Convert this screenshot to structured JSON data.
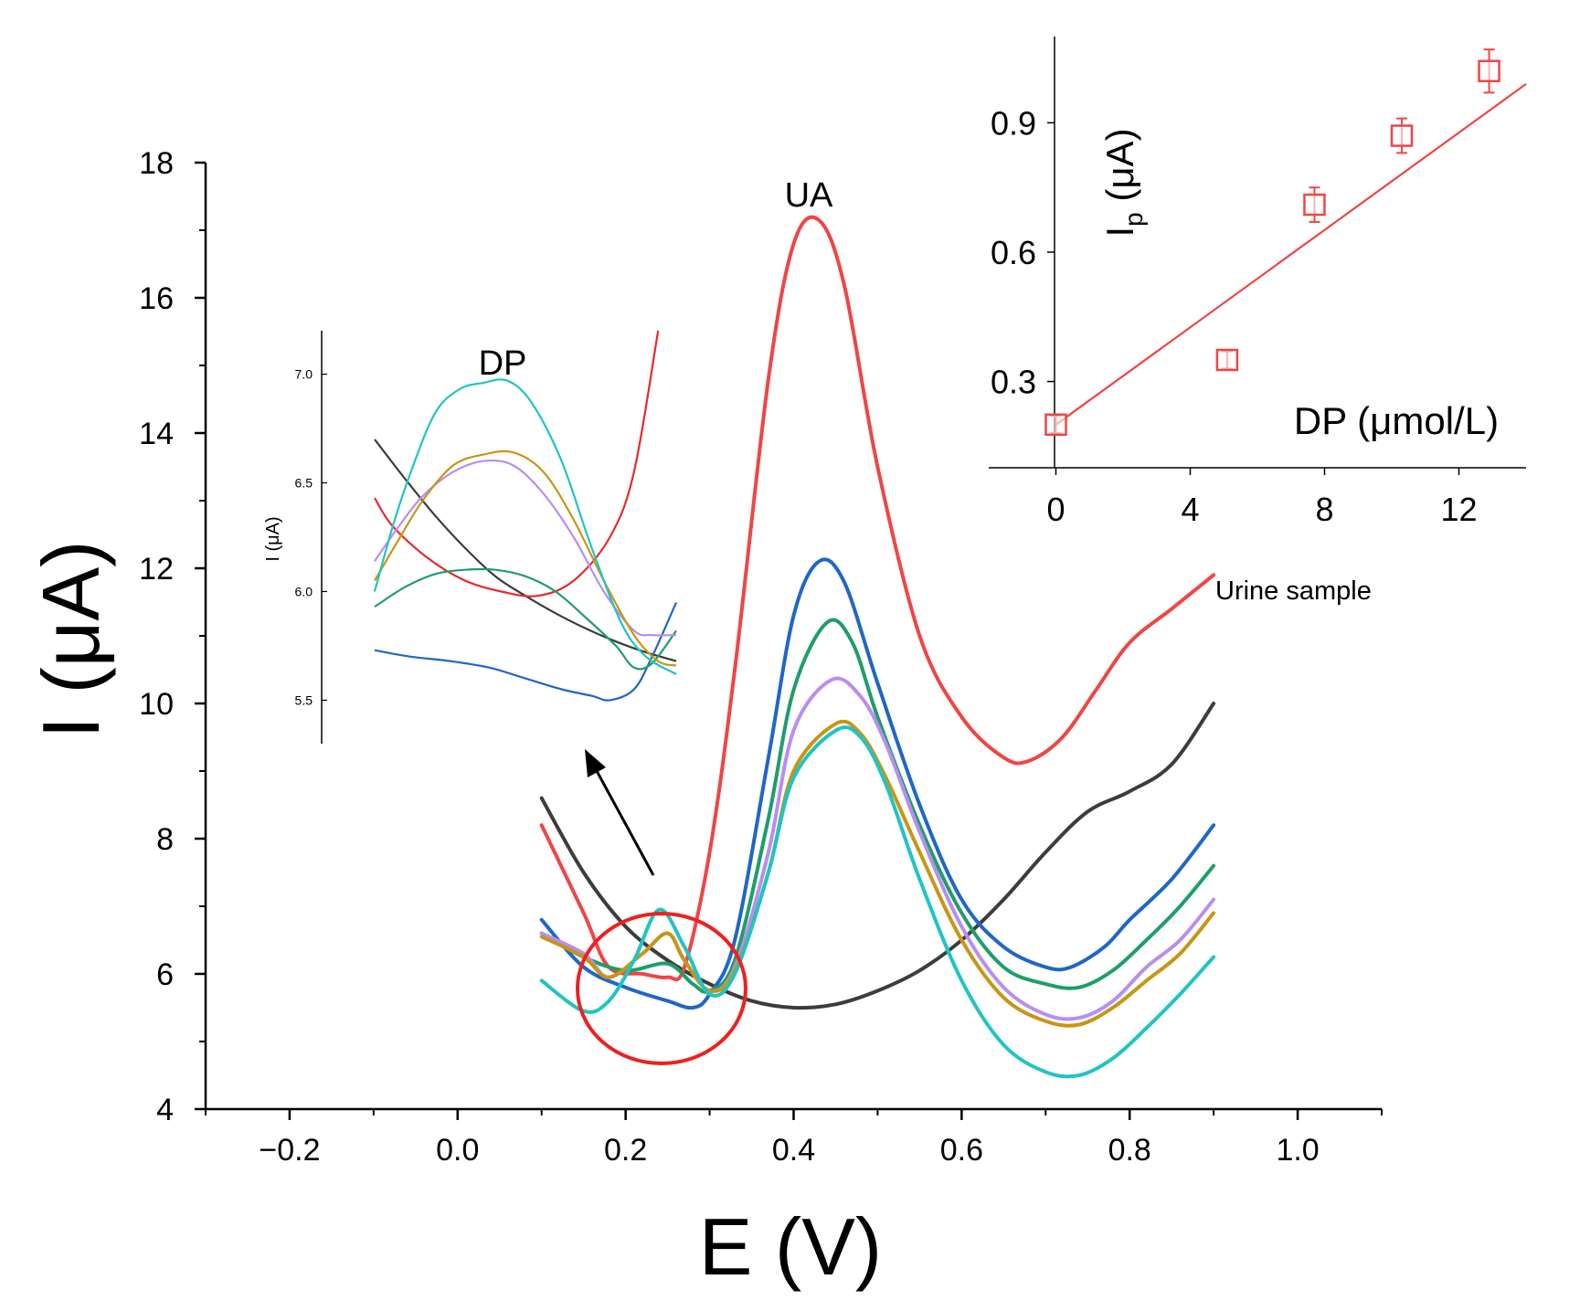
{
  "colors": {
    "red": "#f04545",
    "black": "#3c3c3c",
    "blue": "#1f66c8",
    "green": "#1e9e6a",
    "purple": "#b88ef0",
    "gold": "#c89614",
    "cyan": "#20c4c4",
    "inset_series": "#e8292c"
  },
  "chart_data": [
    {
      "type": "line",
      "xlabel": "E (V)",
      "ylabel": "I (μA)",
      "xlim": [
        -0.3,
        1.1
      ],
      "ylim": [
        4,
        18
      ],
      "xticks": [
        "−0.2",
        "0.0",
        "0.2",
        "0.4",
        "0.6",
        "0.8",
        "1.0"
      ],
      "xtick_values": [
        -0.2,
        0.0,
        0.2,
        0.4,
        0.6,
        0.8,
        1.0
      ],
      "yticks": [
        "4",
        "6",
        "8",
        "10",
        "12",
        "14",
        "16",
        "18"
      ],
      "ytick_values": [
        4,
        6,
        8,
        10,
        12,
        14,
        16,
        18
      ],
      "annotations": {
        "ua_label": "UA",
        "sample_label": "Urine sample"
      },
      "series": [
        {
          "color_key": "black",
          "x": [
            0.1,
            0.15,
            0.2,
            0.25,
            0.3,
            0.35,
            0.4,
            0.45,
            0.5,
            0.55,
            0.6,
            0.65,
            0.7,
            0.75,
            0.8,
            0.85,
            0.9
          ],
          "y": [
            8.6,
            7.5,
            6.7,
            6.2,
            5.85,
            5.6,
            5.5,
            5.55,
            5.75,
            6.05,
            6.5,
            7.1,
            7.8,
            8.4,
            8.7,
            9.1,
            10.0
          ]
        },
        {
          "color_key": "red",
          "x": [
            0.1,
            0.15,
            0.18,
            0.22,
            0.25,
            0.27,
            0.3,
            0.33,
            0.37,
            0.4,
            0.43,
            0.46,
            0.5,
            0.55,
            0.6,
            0.65,
            0.68,
            0.72,
            0.76,
            0.8,
            0.85,
            0.9
          ],
          "y": [
            8.2,
            6.9,
            6.1,
            6.0,
            5.95,
            6.1,
            7.8,
            10.5,
            14.8,
            16.8,
            17.15,
            16.2,
            13.5,
            11.0,
            9.8,
            9.2,
            9.15,
            9.5,
            10.2,
            10.9,
            11.4,
            11.9
          ]
        },
        {
          "color_key": "blue",
          "x": [
            0.1,
            0.15,
            0.2,
            0.25,
            0.28,
            0.3,
            0.33,
            0.37,
            0.4,
            0.43,
            0.46,
            0.5,
            0.55,
            0.6,
            0.65,
            0.7,
            0.73,
            0.77,
            0.8,
            0.85,
            0.9
          ],
          "y": [
            6.8,
            6.1,
            5.8,
            5.6,
            5.5,
            5.7,
            6.5,
            9.2,
            11.3,
            12.1,
            11.8,
            10.3,
            8.5,
            7.1,
            6.4,
            6.1,
            6.1,
            6.4,
            6.8,
            7.4,
            8.2
          ]
        },
        {
          "color_key": "green",
          "x": [
            0.1,
            0.15,
            0.2,
            0.25,
            0.28,
            0.3,
            0.33,
            0.37,
            0.4,
            0.44,
            0.47,
            0.5,
            0.55,
            0.6,
            0.65,
            0.7,
            0.74,
            0.78,
            0.82,
            0.86,
            0.9
          ],
          "y": [
            6.6,
            6.25,
            6.05,
            6.15,
            5.85,
            5.75,
            6.2,
            8.3,
            10.2,
            11.2,
            10.9,
            9.8,
            8.2,
            6.9,
            6.1,
            5.85,
            5.8,
            6.05,
            6.5,
            7.0,
            7.6
          ]
        },
        {
          "color_key": "purple",
          "x": [
            0.1,
            0.15,
            0.18,
            0.22,
            0.25,
            0.27,
            0.3,
            0.33,
            0.37,
            0.4,
            0.445,
            0.48,
            0.51,
            0.55,
            0.6,
            0.65,
            0.7,
            0.74,
            0.78,
            0.82,
            0.86,
            0.9
          ],
          "y": [
            6.6,
            6.3,
            5.95,
            6.3,
            6.6,
            6.2,
            5.75,
            6.1,
            7.8,
            9.6,
            10.35,
            10.1,
            9.4,
            8.1,
            6.7,
            5.8,
            5.4,
            5.35,
            5.6,
            6.1,
            6.5,
            7.1
          ]
        },
        {
          "color_key": "gold",
          "x": [
            0.1,
            0.15,
            0.18,
            0.22,
            0.25,
            0.27,
            0.3,
            0.33,
            0.37,
            0.4,
            0.45,
            0.48,
            0.51,
            0.55,
            0.6,
            0.65,
            0.7,
            0.74,
            0.78,
            0.82,
            0.86,
            0.9
          ],
          "y": [
            6.55,
            6.25,
            5.95,
            6.3,
            6.6,
            6.2,
            5.75,
            6.05,
            7.5,
            9.0,
            9.7,
            9.55,
            8.9,
            7.8,
            6.5,
            5.65,
            5.3,
            5.25,
            5.5,
            5.9,
            6.3,
            6.9
          ]
        },
        {
          "color_key": "cyan",
          "x": [
            0.1,
            0.15,
            0.18,
            0.21,
            0.24,
            0.27,
            0.3,
            0.33,
            0.37,
            0.4,
            0.45,
            0.48,
            0.51,
            0.55,
            0.6,
            0.65,
            0.7,
            0.74,
            0.78,
            0.82,
            0.86,
            0.9
          ],
          "y": [
            5.9,
            5.45,
            5.6,
            6.2,
            6.95,
            6.4,
            5.7,
            6.0,
            7.5,
            8.9,
            9.6,
            9.5,
            8.8,
            7.4,
            5.9,
            4.95,
            4.55,
            4.5,
            4.75,
            5.2,
            5.7,
            6.25
          ]
        }
      ]
    },
    {
      "type": "line",
      "title": "DP",
      "ylabel": "I (μA)",
      "ylim": [
        5.3,
        7.2
      ],
      "yticks": [
        "5.5",
        "6.0",
        "6.5",
        "7.0"
      ],
      "ytick_values": [
        5.5,
        6.0,
        6.5,
        7.0
      ],
      "xlim": [
        0,
        1
      ],
      "series": [
        {
          "color_key": "black",
          "x": [
            0,
            0.1,
            0.2,
            0.3,
            0.4,
            0.5,
            0.6,
            0.7,
            0.8,
            0.9,
            1.0
          ],
          "y": [
            6.7,
            6.52,
            6.35,
            6.2,
            6.07,
            5.98,
            5.9,
            5.83,
            5.77,
            5.72,
            5.68
          ]
        },
        {
          "color_key": "inset_series",
          "x": [
            0,
            0.06,
            0.18,
            0.3,
            0.42,
            0.54,
            0.66,
            0.78,
            0.86,
            0.94
          ],
          "y": [
            6.43,
            6.3,
            6.15,
            6.05,
            6.0,
            5.98,
            6.05,
            6.25,
            6.55,
            7.2
          ]
        },
        {
          "color_key": "blue",
          "x": [
            0,
            0.12,
            0.25,
            0.38,
            0.5,
            0.62,
            0.72,
            0.78,
            0.86,
            0.92,
            1.0
          ],
          "y": [
            5.73,
            5.7,
            5.68,
            5.65,
            5.6,
            5.55,
            5.52,
            5.5,
            5.55,
            5.7,
            5.95
          ]
        },
        {
          "color_key": "green",
          "x": [
            0,
            0.1,
            0.2,
            0.3,
            0.4,
            0.5,
            0.6,
            0.7,
            0.8,
            0.86,
            0.92,
            1.0
          ],
          "y": [
            5.93,
            6.02,
            6.08,
            6.1,
            6.1,
            6.07,
            6.0,
            5.88,
            5.75,
            5.65,
            5.67,
            5.82
          ]
        },
        {
          "color_key": "purple",
          "x": [
            0,
            0.08,
            0.16,
            0.26,
            0.36,
            0.46,
            0.56,
            0.66,
            0.76,
            0.86,
            0.92,
            1.0
          ],
          "y": [
            6.14,
            6.3,
            6.44,
            6.55,
            6.6,
            6.58,
            6.45,
            6.25,
            6.0,
            5.82,
            5.8,
            5.8
          ]
        },
        {
          "color_key": "gold",
          "x": [
            0,
            0.08,
            0.16,
            0.26,
            0.36,
            0.46,
            0.56,
            0.66,
            0.76,
            0.86,
            0.94,
            1.0
          ],
          "y": [
            6.05,
            6.24,
            6.42,
            6.58,
            6.63,
            6.64,
            6.55,
            6.33,
            6.05,
            5.8,
            5.68,
            5.66
          ]
        },
        {
          "color_key": "cyan",
          "x": [
            0,
            0.06,
            0.12,
            0.2,
            0.28,
            0.36,
            0.44,
            0.52,
            0.62,
            0.72,
            0.82,
            0.9,
            1.0
          ],
          "y": [
            6.0,
            6.3,
            6.55,
            6.82,
            6.93,
            6.96,
            6.97,
            6.87,
            6.6,
            6.2,
            5.85,
            5.7,
            5.62
          ]
        }
      ]
    },
    {
      "type": "scatter",
      "xlabel": "DP (μmol/L)",
      "ylabel": "I",
      "ylabel_sub": "p",
      "ylabel_unit": " (μA)",
      "xlim": [
        -2,
        14
      ],
      "ylim": [
        0.1,
        1.1
      ],
      "xticks": [
        "0",
        "4",
        "8",
        "12"
      ],
      "xtick_values": [
        0,
        4,
        8,
        12
      ],
      "yticks": [
        "0.3",
        "0.6",
        "0.9"
      ],
      "ytick_values": [
        0.3,
        0.6,
        0.9
      ],
      "points": {
        "x": [
          0,
          5.1,
          7.7,
          10.3,
          12.9
        ],
        "y": [
          0.2,
          0.35,
          0.71,
          0.87,
          1.02
        ],
        "err": [
          0.02,
          0.02,
          0.04,
          0.04,
          0.05
        ]
      },
      "fit_line": {
        "x": [
          0,
          14
        ],
        "y": [
          0.2,
          0.99
        ]
      }
    }
  ]
}
